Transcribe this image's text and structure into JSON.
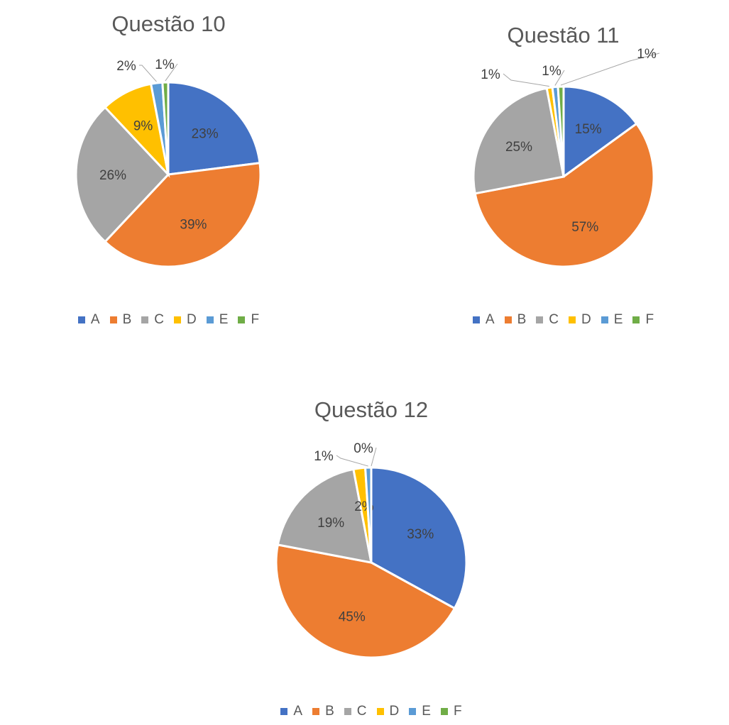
{
  "colors": {
    "A": "#4472C4",
    "B": "#ED7D31",
    "C": "#A5A5A5",
    "D": "#FFC000",
    "E": "#5B9BD5",
    "F": "#70AD47"
  },
  "chart_data": [
    {
      "type": "pie",
      "title": "Questão 10",
      "categories": [
        "A",
        "B",
        "C",
        "D",
        "E",
        "F"
      ],
      "values": [
        23,
        39,
        26,
        9,
        2,
        1
      ],
      "labels": [
        "23%",
        "39%",
        "26%",
        "9%",
        "2%",
        "1%"
      ],
      "legend_position": "bottom"
    },
    {
      "type": "pie",
      "title": "Questão 11",
      "categories": [
        "A",
        "B",
        "C",
        "D",
        "E",
        "F"
      ],
      "values": [
        15,
        57,
        25,
        1,
        1,
        1
      ],
      "labels": [
        "15%",
        "57%",
        "25%",
        "1%",
        "1%",
        "1%"
      ],
      "legend_position": "bottom"
    },
    {
      "type": "pie",
      "title": "Questão 12",
      "categories": [
        "A",
        "B",
        "C",
        "D",
        "E",
        "F"
      ],
      "values": [
        33,
        45,
        19,
        2,
        1,
        0
      ],
      "labels": [
        "33%",
        "45%",
        "19%",
        "2%",
        "1%",
        "0%"
      ],
      "legend_position": "bottom"
    }
  ]
}
